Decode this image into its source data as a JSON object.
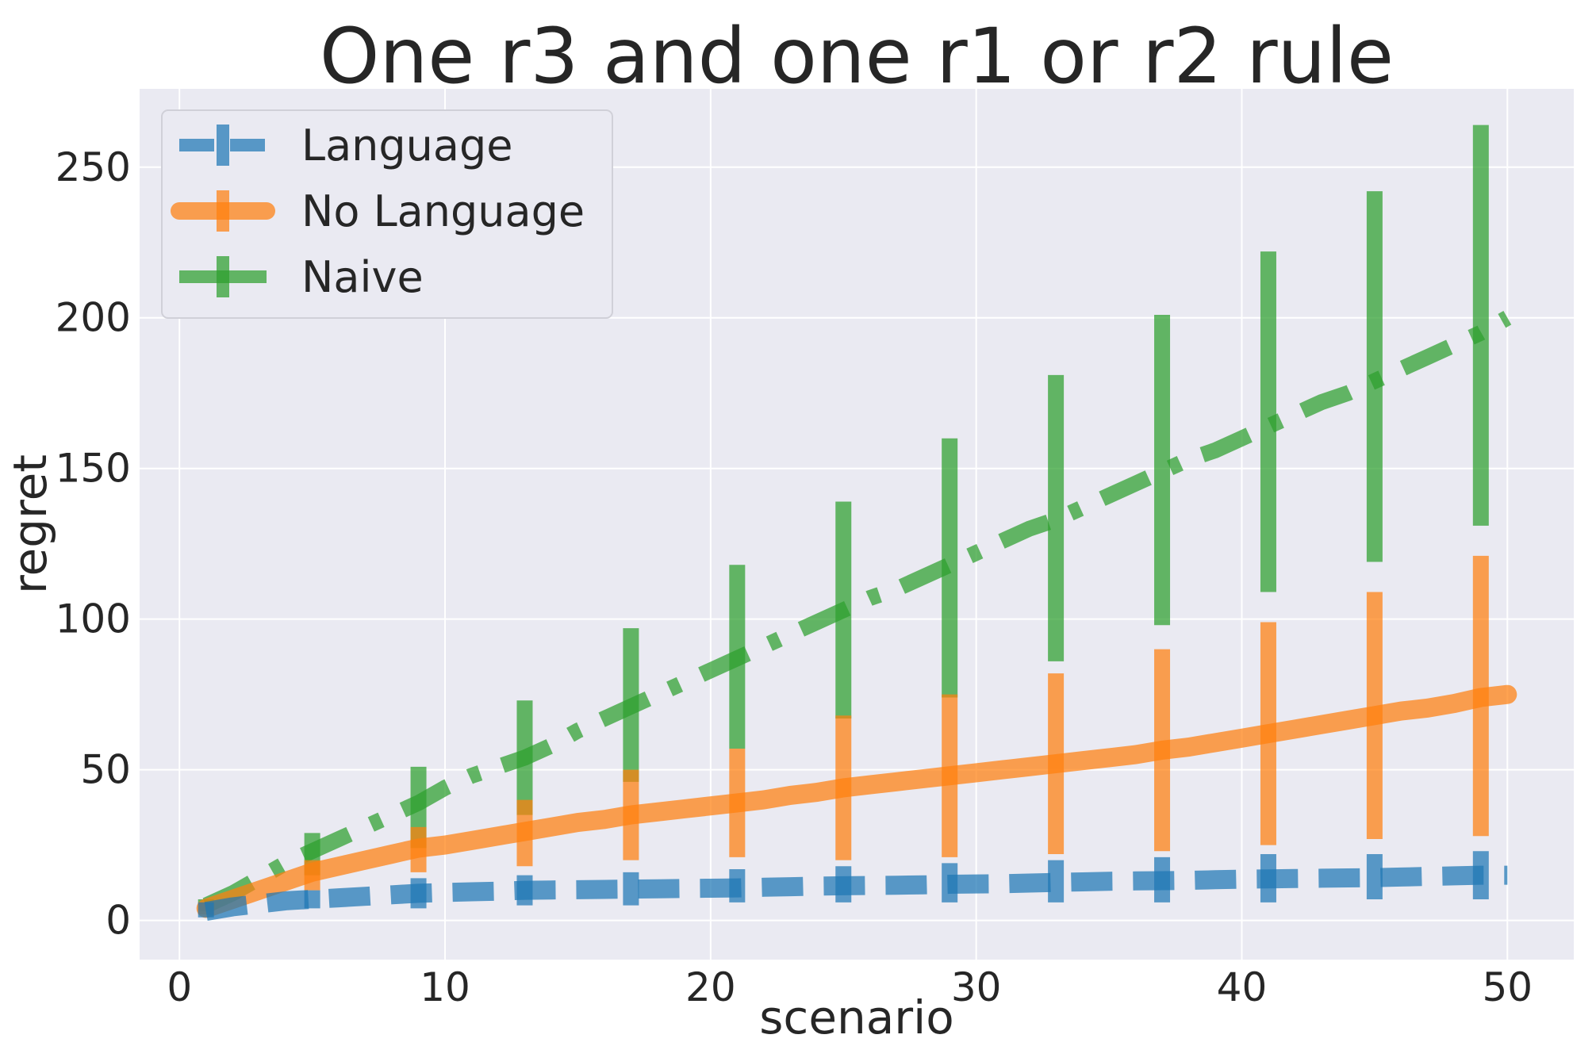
{
  "chart_data": {
    "type": "line",
    "title": "One r3 and one r1 or r2 rule",
    "xlabel": "scenario",
    "ylabel": "regret",
    "xlim": [
      -1.5,
      52.5
    ],
    "ylim": [
      -13,
      276
    ],
    "xticks": [
      0,
      10,
      20,
      30,
      40,
      50
    ],
    "yticks": [
      0,
      50,
      100,
      150,
      200,
      250
    ],
    "grid": true,
    "legend_position": "top-left",
    "series": [
      {
        "name": "Language",
        "color": "#1f77b4",
        "line_style": "dashed",
        "x": [
          1,
          2,
          3,
          4,
          5,
          6,
          7,
          8,
          9,
          10,
          11,
          12,
          13,
          14,
          15,
          16,
          17,
          18,
          19,
          20,
          21,
          22,
          23,
          24,
          25,
          26,
          27,
          28,
          29,
          30,
          31,
          32,
          33,
          34,
          35,
          36,
          37,
          38,
          39,
          40,
          41,
          42,
          43,
          44,
          45,
          46,
          47,
          48,
          49,
          50
        ],
        "y": [
          3,
          4.5,
          5.5,
          6.5,
          7,
          7.5,
          8,
          8.5,
          9,
          9.3,
          9.5,
          9.7,
          10,
          10.1,
          10.2,
          10.3,
          10.4,
          10.5,
          10.6,
          10.7,
          10.8,
          11,
          11.2,
          11.4,
          11.5,
          11.6,
          11.7,
          11.8,
          12,
          12.1,
          12.2,
          12.4,
          12.6,
          12.8,
          13,
          13.1,
          13.2,
          13.3,
          13.5,
          13.7,
          13.8,
          13.9,
          14,
          14.1,
          14.2,
          14.4,
          14.6,
          14.8,
          15,
          15
        ],
        "error_bars": [
          {
            "x": 1,
            "lower": 1,
            "upper": 6
          },
          {
            "x": 5,
            "lower": 4,
            "upper": 10
          },
          {
            "x": 9,
            "lower": 4,
            "upper": 14
          },
          {
            "x": 13,
            "lower": 5,
            "upper": 15
          },
          {
            "x": 17,
            "lower": 5,
            "upper": 16
          },
          {
            "x": 21,
            "lower": 6,
            "upper": 17
          },
          {
            "x": 25,
            "lower": 6,
            "upper": 18
          },
          {
            "x": 29,
            "lower": 6,
            "upper": 19
          },
          {
            "x": 33,
            "lower": 6,
            "upper": 20
          },
          {
            "x": 37,
            "lower": 6,
            "upper": 21
          },
          {
            "x": 41,
            "lower": 6,
            "upper": 22
          },
          {
            "x": 45,
            "lower": 7,
            "upper": 22
          },
          {
            "x": 49,
            "lower": 7,
            "upper": 23
          }
        ]
      },
      {
        "name": "No Language",
        "color": "#ff7f0e",
        "line_style": "solid",
        "x": [
          1,
          2,
          3,
          4,
          5,
          6,
          7,
          8,
          9,
          10,
          11,
          12,
          13,
          14,
          15,
          16,
          17,
          18,
          19,
          20,
          21,
          22,
          23,
          24,
          25,
          26,
          27,
          28,
          29,
          30,
          31,
          32,
          33,
          34,
          35,
          36,
          37,
          38,
          39,
          40,
          41,
          42,
          43,
          44,
          45,
          46,
          47,
          48,
          49,
          50
        ],
        "y": [
          4,
          7,
          10,
          13,
          16,
          18,
          20,
          22,
          24,
          25,
          26.5,
          28,
          29.5,
          31,
          32.5,
          33.5,
          35,
          36,
          37,
          38,
          39,
          40,
          41.5,
          42.5,
          44,
          45,
          46,
          47,
          48,
          49,
          50,
          51,
          52,
          53,
          54,
          55,
          56.5,
          57.5,
          59,
          60.5,
          62,
          63.5,
          65,
          66.5,
          68,
          69.5,
          70.5,
          72,
          74,
          75
        ],
        "error_bars": [
          {
            "x": 1,
            "lower": 2,
            "upper": 6
          },
          {
            "x": 5,
            "lower": 10,
            "upper": 20
          },
          {
            "x": 9,
            "lower": 16,
            "upper": 31
          },
          {
            "x": 13,
            "lower": 18,
            "upper": 40
          },
          {
            "x": 17,
            "lower": 20,
            "upper": 50
          },
          {
            "x": 21,
            "lower": 21,
            "upper": 57
          },
          {
            "x": 25,
            "lower": 20,
            "upper": 68
          },
          {
            "x": 29,
            "lower": 21,
            "upper": 75
          },
          {
            "x": 33,
            "lower": 22,
            "upper": 82
          },
          {
            "x": 37,
            "lower": 23,
            "upper": 90
          },
          {
            "x": 41,
            "lower": 25,
            "upper": 99
          },
          {
            "x": 45,
            "lower": 27,
            "upper": 109
          },
          {
            "x": 49,
            "lower": 28,
            "upper": 121
          }
        ]
      },
      {
        "name": "Naive",
        "color": "#2ca02c",
        "line_style": "dashdot",
        "x": [
          1,
          2,
          3,
          4,
          5,
          6,
          7,
          8,
          9,
          10,
          11,
          12,
          13,
          14,
          15,
          16,
          17,
          18,
          19,
          20,
          21,
          22,
          23,
          24,
          25,
          26,
          27,
          28,
          29,
          30,
          31,
          32,
          33,
          34,
          35,
          36,
          37,
          38,
          39,
          40,
          41,
          42,
          43,
          44,
          45,
          46,
          47,
          48,
          49,
          50
        ],
        "y": [
          5,
          9,
          14,
          19,
          23,
          27,
          31,
          35,
          39,
          44,
          48,
          51,
          54,
          58,
          63,
          67,
          71,
          75,
          79,
          83,
          87,
          91,
          95,
          99,
          103,
          107,
          110,
          114,
          118,
          122,
          126,
          130,
          133,
          137,
          141,
          145,
          149,
          153,
          156,
          160,
          164,
          168,
          172,
          175,
          179,
          183,
          187,
          191,
          195,
          200
        ],
        "error_bars": [
          {
            "x": 1,
            "lower": 3,
            "upper": 7
          },
          {
            "x": 5,
            "lower": 15,
            "upper": 29
          },
          {
            "x": 9,
            "lower": 24,
            "upper": 51
          },
          {
            "x": 13,
            "lower": 35,
            "upper": 73
          },
          {
            "x": 17,
            "lower": 46,
            "upper": 97
          },
          {
            "x": 21,
            "lower": 57,
            "upper": 118
          },
          {
            "x": 25,
            "lower": 67,
            "upper": 139
          },
          {
            "x": 29,
            "lower": 74,
            "upper": 160
          },
          {
            "x": 33,
            "lower": 86,
            "upper": 181
          },
          {
            "x": 37,
            "lower": 98,
            "upper": 201
          },
          {
            "x": 41,
            "lower": 109,
            "upper": 222
          },
          {
            "x": 45,
            "lower": 119,
            "upper": 242
          },
          {
            "x": 49,
            "lower": 131,
            "upper": 264
          }
        ]
      }
    ]
  }
}
